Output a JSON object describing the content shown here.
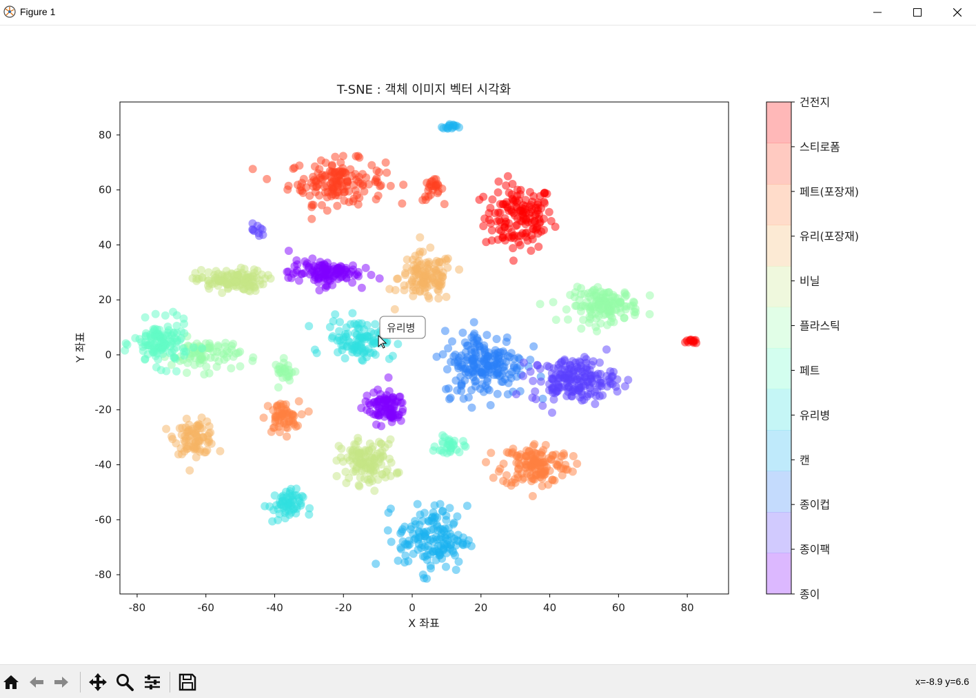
{
  "window": {
    "title": "Figure 1",
    "icons": {
      "app": "matplotlib-icon",
      "minimize": "minimize-icon",
      "maximize": "maximize-icon",
      "close": "close-icon"
    }
  },
  "toolbar": {
    "buttons": [
      {
        "name": "home",
        "icon": "home-icon"
      },
      {
        "name": "back",
        "icon": "back-arrow-icon"
      },
      {
        "name": "forward",
        "icon": "forward-arrow-icon"
      },
      {
        "name": "pan",
        "icon": "move-icon"
      },
      {
        "name": "zoom",
        "icon": "magnifier-icon"
      },
      {
        "name": "configure-subplots",
        "icon": "sliders-icon"
      },
      {
        "name": "save",
        "icon": "floppy-disk-icon"
      }
    ],
    "coordinates": "x=-8.9 y=6.6"
  },
  "chart_data": {
    "type": "scatter",
    "title": "T-SNE : 객체 이미지 벡터 시각화",
    "xlabel": "X 좌표",
    "ylabel": "Y 좌표",
    "xlim": [
      -85,
      92
    ],
    "ylim": [
      -87,
      92
    ],
    "xticks": [
      -80,
      -60,
      -40,
      -20,
      0,
      20,
      40,
      60,
      80
    ],
    "yticks": [
      -80,
      -60,
      -40,
      -20,
      0,
      20,
      40,
      60,
      80
    ],
    "grid": false,
    "point_alpha": 0.5,
    "colorbar": {
      "labels": [
        "종이",
        "종이팩",
        "종이컵",
        "캔",
        "유리병",
        "페트",
        "플라스틱",
        "비닐",
        "유리(포장재)",
        "페트(포장재)",
        "스티로폼",
        "건전지"
      ],
      "colors": [
        "#8000ff",
        "#5a3ffd",
        "#2a7ff8",
        "#1ab2f0",
        "#30dfe0",
        "#62fbc6",
        "#95fba8",
        "#c6e586",
        "#f5b464",
        "#ff803f",
        "#ff4020",
        "#ff0000"
      ]
    },
    "tooltip": {
      "text": "유리병",
      "x": -3,
      "y": 10
    },
    "clusters": [
      {
        "category": "건전지",
        "cx": 31,
        "cy": 50,
        "sx": 5,
        "sy": 6,
        "n": 150
      },
      {
        "category": "건전지",
        "cx": 82,
        "cy": 5,
        "sx": 1.2,
        "sy": 0.5,
        "n": 12
      },
      {
        "category": "스티로폼",
        "cx": -22,
        "cy": 63,
        "sx": 7,
        "sy": 4,
        "n": 150
      },
      {
        "category": "스티로폼",
        "cx": 6,
        "cy": 60,
        "sx": 1.5,
        "sy": 2,
        "n": 25
      },
      {
        "category": "유리(포장재)",
        "cx": 4,
        "cy": 28,
        "sx": 4,
        "sy": 4.5,
        "n": 120
      },
      {
        "category": "유리(포장재)",
        "cx": -63,
        "cy": -30,
        "sx": 3,
        "sy": 3,
        "n": 80
      },
      {
        "category": "페트(포장재)",
        "cx": -38,
        "cy": -23,
        "sx": 2.5,
        "sy": 3,
        "n": 60
      },
      {
        "category": "페트(포장재)",
        "cx": 36,
        "cy": -40,
        "sx": 5,
        "sy": 4,
        "n": 140
      },
      {
        "category": "비닐",
        "cx": -53,
        "cy": 27,
        "sx": 5,
        "sy": 2,
        "n": 120
      },
      {
        "category": "비닐",
        "cx": -13,
        "cy": -39,
        "sx": 4,
        "sy": 4,
        "n": 120
      },
      {
        "category": "플라스틱",
        "cx": 56,
        "cy": 18,
        "sx": 5,
        "sy": 3,
        "n": 140
      },
      {
        "category": "플라스틱",
        "cx": -37,
        "cy": -6,
        "sx": 1.5,
        "sy": 2,
        "n": 25
      },
      {
        "category": "플라스틱",
        "cx": -60,
        "cy": 0,
        "sx": 5,
        "sy": 3,
        "n": 80
      },
      {
        "category": "페트",
        "cx": -73,
        "cy": 4,
        "sx": 4,
        "sy": 4,
        "n": 120
      },
      {
        "category": "페트",
        "cx": 11,
        "cy": -33,
        "sx": 2,
        "sy": 2,
        "n": 30
      },
      {
        "category": "유리병",
        "cx": -15,
        "cy": 6,
        "sx": 5,
        "sy": 3.5,
        "n": 110
      },
      {
        "category": "유리병",
        "cx": -37,
        "cy": -55,
        "sx": 2.5,
        "sy": 3,
        "n": 60
      },
      {
        "category": "캔",
        "cx": 11,
        "cy": 83,
        "sx": 1,
        "sy": 0.6,
        "n": 15
      },
      {
        "category": "캔",
        "cx": 6,
        "cy": -67,
        "sx": 5,
        "sy": 6,
        "n": 150
      },
      {
        "category": "종이컵",
        "cx": 21,
        "cy": -3,
        "sx": 6,
        "sy": 6,
        "n": 200
      },
      {
        "category": "종이팩",
        "cx": -45,
        "cy": 45,
        "sx": 1,
        "sy": 1.3,
        "n": 10
      },
      {
        "category": "종이팩",
        "cx": 47,
        "cy": -9,
        "sx": 6,
        "sy": 4,
        "n": 180
      },
      {
        "category": "종이",
        "cx": -26,
        "cy": 30,
        "sx": 5,
        "sy": 2.2,
        "n": 120
      },
      {
        "category": "종이",
        "cx": -8,
        "cy": -19,
        "sx": 3,
        "sy": 3,
        "n": 90
      }
    ]
  }
}
